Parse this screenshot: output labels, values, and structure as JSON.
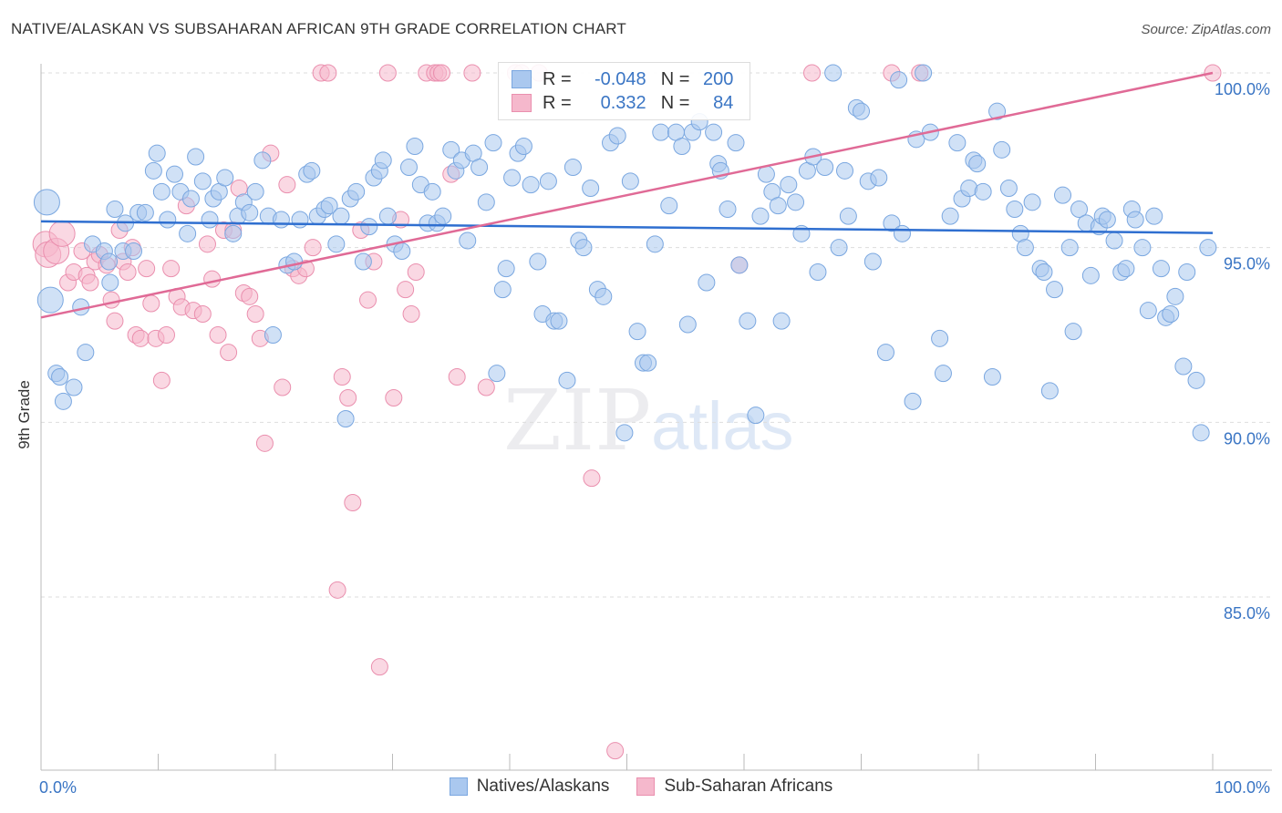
{
  "title": "NATIVE/ALASKAN VS SUBSAHARAN AFRICAN 9TH GRADE CORRELATION CHART",
  "source": "Source: ZipAtlas.com",
  "watermark": {
    "zip": "ZIP",
    "atlas": "atlas"
  },
  "legend_stats": [
    {
      "r_label": "R =",
      "r_value": "-0.048",
      "n_label": "N =",
      "n_value": "200",
      "color": "#aac8ef"
    },
    {
      "r_label": "R =",
      "r_value": "0.332",
      "n_label": "N =",
      "n_value": "84",
      "color": "#f5b8cc"
    }
  ],
  "bottom_legend": [
    {
      "label": "Natives/Alaskans",
      "color": "#aac8ef"
    },
    {
      "label": "Sub-Saharan Africans",
      "color": "#f5b8cc"
    }
  ],
  "chart_data": {
    "type": "scatter",
    "title": "NATIVE/ALASKAN VS SUBSAHARAN AFRICAN 9TH GRADE CORRELATION CHART",
    "xlabel": "",
    "ylabel": "9th Grade",
    "xlim": [
      0,
      100
    ],
    "ylim": [
      80.0,
      100.5
    ],
    "x_tick_labels": [
      "0.0%",
      "100.0%"
    ],
    "y_ticks": [
      85.0,
      90.0,
      95.0,
      100.0
    ],
    "y_tick_labels": [
      "85.0%",
      "90.0%",
      "95.0%",
      "100.0%"
    ],
    "grid": true,
    "series": [
      {
        "name": "Natives/Alaskans",
        "color": "#7aa7e0",
        "fill": "#aac8ef",
        "trend": {
          "x": [
            0,
            100
          ],
          "y": [
            95.75,
            95.42
          ]
        },
        "points": [
          [
            0.5,
            96.3
          ],
          [
            0.8,
            93.5
          ],
          [
            1.3,
            91.4
          ],
          [
            1.6,
            91.3
          ],
          [
            1.9,
            90.6
          ],
          [
            2.8,
            91.0
          ],
          [
            3.4,
            93.3
          ],
          [
            3.8,
            92.0
          ],
          [
            4.4,
            95.1
          ],
          [
            5.4,
            94.9
          ],
          [
            5.8,
            94.6
          ],
          [
            5.9,
            94.0
          ],
          [
            6.3,
            96.1
          ],
          [
            7.0,
            94.9
          ],
          [
            7.2,
            95.7
          ],
          [
            7.9,
            94.9
          ],
          [
            8.3,
            96.0
          ],
          [
            8.9,
            96.0
          ],
          [
            9.6,
            97.2
          ],
          [
            9.9,
            97.7
          ],
          [
            10.3,
            96.6
          ],
          [
            10.8,
            95.8
          ],
          [
            11.4,
            97.1
          ],
          [
            11.9,
            96.6
          ],
          [
            12.5,
            95.4
          ],
          [
            12.8,
            96.4
          ],
          [
            13.2,
            97.6
          ],
          [
            13.8,
            96.9
          ],
          [
            14.4,
            95.8
          ],
          [
            14.7,
            96.4
          ],
          [
            15.2,
            96.6
          ],
          [
            15.7,
            97.0
          ],
          [
            16.4,
            95.4
          ],
          [
            16.8,
            95.9
          ],
          [
            17.3,
            96.3
          ],
          [
            17.8,
            96.0
          ],
          [
            18.3,
            96.6
          ],
          [
            18.9,
            97.5
          ],
          [
            19.4,
            95.9
          ],
          [
            19.8,
            92.5
          ],
          [
            20.5,
            95.8
          ],
          [
            21.0,
            94.5
          ],
          [
            21.6,
            94.6
          ],
          [
            22.1,
            95.8
          ],
          [
            22.7,
            97.1
          ],
          [
            23.1,
            97.2
          ],
          [
            23.6,
            95.9
          ],
          [
            24.2,
            96.1
          ],
          [
            24.6,
            96.2
          ],
          [
            25.2,
            95.1
          ],
          [
            25.6,
            95.9
          ],
          [
            26.0,
            90.1
          ],
          [
            26.4,
            96.4
          ],
          [
            26.9,
            96.6
          ],
          [
            27.5,
            94.6
          ],
          [
            28.0,
            95.6
          ],
          [
            28.4,
            97.0
          ],
          [
            28.9,
            97.2
          ],
          [
            29.2,
            97.5
          ],
          [
            29.6,
            95.9
          ],
          [
            30.2,
            95.1
          ],
          [
            30.8,
            94.9
          ],
          [
            31.4,
            97.3
          ],
          [
            31.9,
            97.9
          ],
          [
            32.4,
            96.8
          ],
          [
            33.0,
            95.7
          ],
          [
            33.4,
            96.6
          ],
          [
            33.8,
            95.7
          ],
          [
            34.3,
            95.9
          ],
          [
            35.0,
            97.8
          ],
          [
            35.4,
            97.2
          ],
          [
            35.9,
            97.5
          ],
          [
            36.4,
            95.2
          ],
          [
            36.9,
            97.7
          ],
          [
            37.4,
            97.3
          ],
          [
            38.0,
            96.3
          ],
          [
            38.6,
            98.0
          ],
          [
            38.9,
            91.4
          ],
          [
            39.4,
            93.8
          ],
          [
            39.7,
            94.4
          ],
          [
            40.2,
            97.0
          ],
          [
            40.7,
            97.7
          ],
          [
            41.2,
            97.9
          ],
          [
            41.8,
            96.8
          ],
          [
            42.4,
            94.6
          ],
          [
            42.8,
            93.1
          ],
          [
            43.3,
            96.9
          ],
          [
            43.8,
            92.9
          ],
          [
            44.2,
            92.9
          ],
          [
            44.9,
            91.2
          ],
          [
            45.4,
            97.3
          ],
          [
            45.9,
            95.2
          ],
          [
            46.3,
            95.0
          ],
          [
            46.9,
            96.7
          ],
          [
            47.5,
            93.8
          ],
          [
            48.0,
            93.6
          ],
          [
            48.6,
            98.0
          ],
          [
            49.2,
            98.2
          ],
          [
            49.8,
            89.7
          ],
          [
            50.3,
            96.9
          ],
          [
            50.9,
            92.6
          ],
          [
            51.4,
            91.7
          ],
          [
            51.8,
            91.7
          ],
          [
            52.4,
            95.1
          ],
          [
            52.9,
            98.3
          ],
          [
            53.6,
            96.2
          ],
          [
            54.2,
            98.3
          ],
          [
            54.7,
            97.9
          ],
          [
            55.2,
            92.8
          ],
          [
            55.6,
            98.3
          ],
          [
            56.2,
            98.6
          ],
          [
            56.8,
            94.0
          ],
          [
            57.4,
            98.3
          ],
          [
            57.8,
            97.4
          ],
          [
            58.0,
            97.2
          ],
          [
            58.6,
            96.1
          ],
          [
            59.3,
            98.0
          ],
          [
            59.6,
            94.5
          ],
          [
            60.3,
            92.9
          ],
          [
            61.0,
            90.2
          ],
          [
            61.4,
            95.9
          ],
          [
            61.9,
            97.1
          ],
          [
            62.4,
            96.6
          ],
          [
            62.9,
            96.2
          ],
          [
            63.2,
            92.9
          ],
          [
            63.8,
            96.8
          ],
          [
            64.4,
            96.3
          ],
          [
            64.9,
            95.4
          ],
          [
            65.4,
            97.2
          ],
          [
            65.9,
            97.6
          ],
          [
            66.3,
            94.3
          ],
          [
            66.9,
            97.3
          ],
          [
            67.6,
            100.0
          ],
          [
            68.1,
            95.0
          ],
          [
            68.6,
            97.2
          ],
          [
            68.9,
            95.9
          ],
          [
            69.6,
            99.0
          ],
          [
            70.0,
            98.9
          ],
          [
            70.6,
            96.9
          ],
          [
            71.0,
            94.6
          ],
          [
            71.5,
            97.0
          ],
          [
            72.1,
            92.0
          ],
          [
            72.6,
            95.7
          ],
          [
            73.2,
            99.8
          ],
          [
            73.5,
            95.4
          ],
          [
            74.4,
            90.6
          ],
          [
            74.7,
            98.1
          ],
          [
            75.3,
            100.0
          ],
          [
            75.9,
            98.3
          ],
          [
            76.7,
            92.4
          ],
          [
            77.0,
            91.4
          ],
          [
            77.6,
            95.9
          ],
          [
            78.2,
            98.0
          ],
          [
            78.6,
            96.4
          ],
          [
            79.2,
            96.7
          ],
          [
            79.6,
            97.5
          ],
          [
            79.9,
            97.4
          ],
          [
            80.4,
            96.6
          ],
          [
            81.2,
            91.3
          ],
          [
            81.6,
            98.9
          ],
          [
            82.0,
            97.8
          ],
          [
            82.6,
            96.7
          ],
          [
            83.1,
            96.1
          ],
          [
            83.6,
            95.4
          ],
          [
            84.0,
            95.0
          ],
          [
            84.6,
            96.3
          ],
          [
            85.3,
            94.4
          ],
          [
            85.6,
            94.3
          ],
          [
            86.1,
            90.9
          ],
          [
            86.5,
            93.8
          ],
          [
            87.2,
            96.5
          ],
          [
            87.8,
            95.0
          ],
          [
            88.1,
            92.6
          ],
          [
            88.6,
            96.1
          ],
          [
            89.2,
            95.7
          ],
          [
            89.6,
            94.2
          ],
          [
            90.3,
            95.6
          ],
          [
            90.6,
            95.9
          ],
          [
            91.0,
            95.8
          ],
          [
            91.6,
            95.2
          ],
          [
            92.2,
            94.3
          ],
          [
            92.6,
            94.4
          ],
          [
            93.1,
            96.1
          ],
          [
            93.4,
            95.8
          ],
          [
            94.0,
            95.0
          ],
          [
            94.5,
            93.2
          ],
          [
            95.0,
            95.9
          ],
          [
            95.6,
            94.4
          ],
          [
            96.0,
            93.0
          ],
          [
            96.4,
            93.1
          ],
          [
            96.8,
            93.6
          ],
          [
            97.5,
            91.6
          ],
          [
            97.8,
            94.3
          ],
          [
            98.6,
            91.2
          ],
          [
            99.0,
            89.7
          ],
          [
            99.6,
            95.0
          ]
        ]
      },
      {
        "name": "Sub-Saharan Africans",
        "color": "#ea8fae",
        "fill": "#f5b8cc",
        "trend": {
          "x": [
            0,
            100
          ],
          "y": [
            93.0,
            100.0
          ]
        },
        "points": [
          [
            0.4,
            95.1
          ],
          [
            0.6,
            94.8
          ],
          [
            1.3,
            94.9
          ],
          [
            1.8,
            95.4
          ],
          [
            2.3,
            94.0
          ],
          [
            2.8,
            94.3
          ],
          [
            3.5,
            94.9
          ],
          [
            3.9,
            94.2
          ],
          [
            4.2,
            94.0
          ],
          [
            4.6,
            94.6
          ],
          [
            5.0,
            94.8
          ],
          [
            5.6,
            94.5
          ],
          [
            6.0,
            93.5
          ],
          [
            6.3,
            92.9
          ],
          [
            6.7,
            95.5
          ],
          [
            7.0,
            94.6
          ],
          [
            7.4,
            94.3
          ],
          [
            7.8,
            95.0
          ],
          [
            8.1,
            92.5
          ],
          [
            8.5,
            92.4
          ],
          [
            9.0,
            94.4
          ],
          [
            9.4,
            93.4
          ],
          [
            9.8,
            92.4
          ],
          [
            10.3,
            91.2
          ],
          [
            10.7,
            92.5
          ],
          [
            11.1,
            94.4
          ],
          [
            11.6,
            93.6
          ],
          [
            12.0,
            93.3
          ],
          [
            12.4,
            96.2
          ],
          [
            13.0,
            93.2
          ],
          [
            13.8,
            93.1
          ],
          [
            14.2,
            95.1
          ],
          [
            14.6,
            94.1
          ],
          [
            15.1,
            92.5
          ],
          [
            15.6,
            95.5
          ],
          [
            16.0,
            92.0
          ],
          [
            16.4,
            95.5
          ],
          [
            16.9,
            96.7
          ],
          [
            17.3,
            93.7
          ],
          [
            17.8,
            93.6
          ],
          [
            18.3,
            93.1
          ],
          [
            18.7,
            92.4
          ],
          [
            19.1,
            89.4
          ],
          [
            19.6,
            97.7
          ],
          [
            20.6,
            91.0
          ],
          [
            21.0,
            96.8
          ],
          [
            21.5,
            94.4
          ],
          [
            22.0,
            94.2
          ],
          [
            22.6,
            94.4
          ],
          [
            23.2,
            95.0
          ],
          [
            23.9,
            100.0
          ],
          [
            24.5,
            100.0
          ],
          [
            25.3,
            85.2
          ],
          [
            25.7,
            91.3
          ],
          [
            26.2,
            90.7
          ],
          [
            26.6,
            87.7
          ],
          [
            27.3,
            95.5
          ],
          [
            27.9,
            93.5
          ],
          [
            28.4,
            94.6
          ],
          [
            28.9,
            83.0
          ],
          [
            29.6,
            100.0
          ],
          [
            30.1,
            90.7
          ],
          [
            30.7,
            95.8
          ],
          [
            31.1,
            93.8
          ],
          [
            31.6,
            93.1
          ],
          [
            32.0,
            94.3
          ],
          [
            32.9,
            100.0
          ],
          [
            33.6,
            100.0
          ],
          [
            33.9,
            100.0
          ],
          [
            34.2,
            100.0
          ],
          [
            35.0,
            97.1
          ],
          [
            35.5,
            91.3
          ],
          [
            36.8,
            100.0
          ],
          [
            38.0,
            91.0
          ],
          [
            40.5,
            100.0
          ],
          [
            41.0,
            100.0
          ],
          [
            42.5,
            100.0
          ],
          [
            47.0,
            88.4
          ],
          [
            49.0,
            80.6
          ],
          [
            59.6,
            94.5
          ],
          [
            65.8,
            100.0
          ],
          [
            72.6,
            100.0
          ],
          [
            75.0,
            100.0
          ],
          [
            100.0,
            100.0
          ]
        ]
      }
    ]
  }
}
